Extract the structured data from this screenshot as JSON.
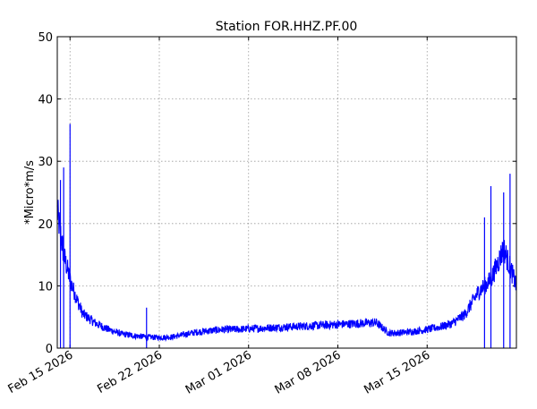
{
  "chart_data": {
    "type": "line",
    "title": "Station FOR.HHZ.PF.00",
    "xlabel": "",
    "ylabel": "*Micro*m/s",
    "x_ticks": [
      "Feb 15 2026",
      "Feb 22 2026",
      "Mar 01 2026",
      "Mar 08 2026",
      "Mar 15 2026"
    ],
    "y_ticks": [
      "0",
      "10",
      "20",
      "30",
      "40",
      "50"
    ],
    "xlim": [
      "2026-02-14",
      "2026-03-22"
    ],
    "ylim": [
      0,
      50
    ],
    "grid": true,
    "series_color": "#0000ff",
    "series": [
      {
        "x": [
          "2026-02-14",
          "2026-02-14T12",
          "2026-02-15",
          "2026-02-15T12",
          "2026-02-16",
          "2026-02-17",
          "2026-02-18",
          "2026-02-19",
          "2026-02-20",
          "2026-02-21",
          "2026-02-22",
          "2026-02-23",
          "2026-02-24",
          "2026-02-25",
          "2026-02-26",
          "2026-02-27",
          "2026-02-28",
          "2026-03-01",
          "2026-03-02",
          "2026-03-03",
          "2026-03-04",
          "2026-03-05",
          "2026-03-06",
          "2026-03-07",
          "2026-03-08",
          "2026-03-09",
          "2026-03-10",
          "2026-03-11",
          "2026-03-12",
          "2026-03-13",
          "2026-03-14",
          "2026-03-15",
          "2026-03-16",
          "2026-03-17",
          "2026-03-18",
          "2026-03-19",
          "2026-03-20",
          "2026-03-21",
          "2026-03-22"
        ],
        "y": [
          22,
          15,
          11,
          8,
          5.5,
          4,
          3,
          2.3,
          2,
          1.8,
          1.7,
          1.8,
          2.2,
          2.6,
          2.8,
          3,
          3,
          3.1,
          3.2,
          3.3,
          3.4,
          3.5,
          3.6,
          3.7,
          3.8,
          3.9,
          4,
          4.1,
          2.4,
          2.5,
          2.7,
          3,
          3.4,
          4,
          5.5,
          9,
          11,
          16,
          10
        ],
        "spikes": [
          {
            "x": "2026-02-14T06",
            "y": 27
          },
          {
            "x": "2026-02-14T12",
            "y": 29
          },
          {
            "x": "2026-02-15",
            "y": 36
          },
          {
            "x": "2026-02-21",
            "y": 6.5
          },
          {
            "x": "2026-03-19T12",
            "y": 21
          },
          {
            "x": "2026-03-20",
            "y": 26
          },
          {
            "x": "2026-03-21",
            "y": 25
          },
          {
            "x": "2026-03-21T12",
            "y": 28
          }
        ]
      }
    ]
  }
}
